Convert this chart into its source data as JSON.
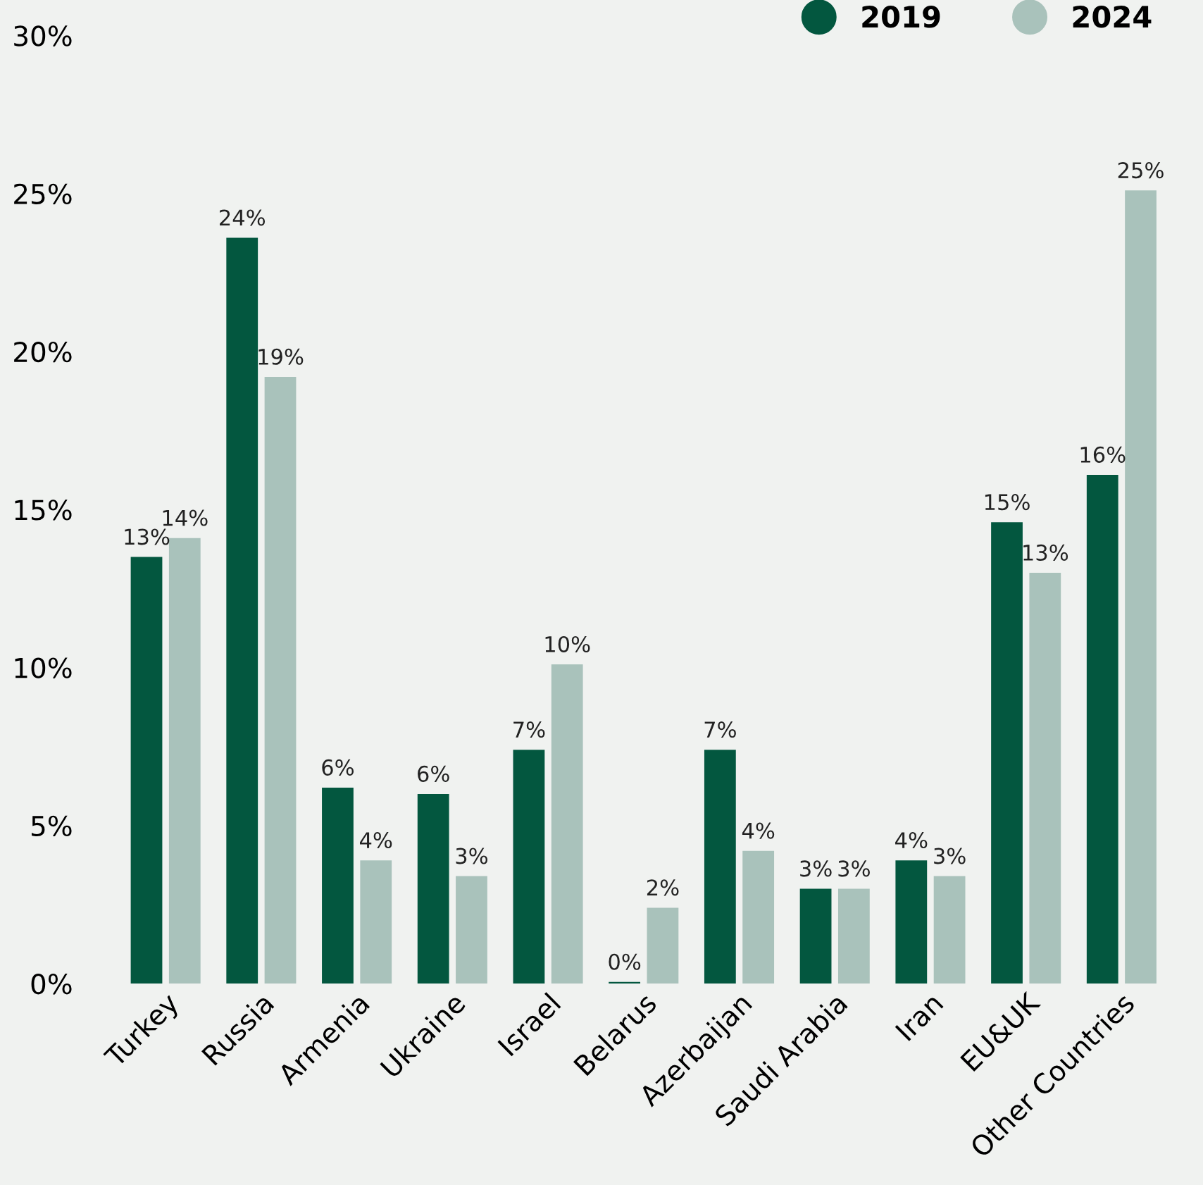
{
  "chart_data": {
    "type": "bar",
    "categories": [
      "Turkey",
      "Russia",
      "Armenia",
      "Ukraine",
      "Israel",
      "Belarus",
      "Azerbaijan",
      "Saudi Arabia",
      "Iran",
      "EU&UK",
      "Other Countries"
    ],
    "series": [
      {
        "name": "2019",
        "color": "#03573f",
        "values": [
          13.5,
          23.6,
          6.2,
          6.0,
          7.4,
          0.05,
          7.4,
          3.0,
          3.9,
          14.6,
          16.1
        ],
        "value_labels": [
          "13%",
          "24%",
          "6%",
          "6%",
          "7%",
          "0%",
          "7%",
          "3%",
          "4%",
          "15%",
          "16%"
        ]
      },
      {
        "name": "2024",
        "color": "#a9c2bb",
        "values": [
          14.1,
          19.2,
          3.9,
          3.4,
          10.1,
          2.4,
          4.2,
          3.0,
          3.4,
          13.0,
          25.1
        ],
        "value_labels": [
          "14%",
          "19%",
          "4%",
          "3%",
          "10%",
          "2%",
          "4%",
          "3%",
          "3%",
          "13%",
          "25%"
        ]
      }
    ],
    "ylim": [
      0,
      30
    ],
    "yticks": [
      {
        "value": 0,
        "label": "0%"
      },
      {
        "value": 5,
        "label": "5%"
      },
      {
        "value": 10,
        "label": "10%"
      },
      {
        "value": 15,
        "label": "15%"
      },
      {
        "value": 20,
        "label": "20%"
      },
      {
        "value": 25,
        "label": "25%"
      },
      {
        "value": 30,
        "label": "30%"
      }
    ],
    "grid": false,
    "legend": "top right"
  }
}
